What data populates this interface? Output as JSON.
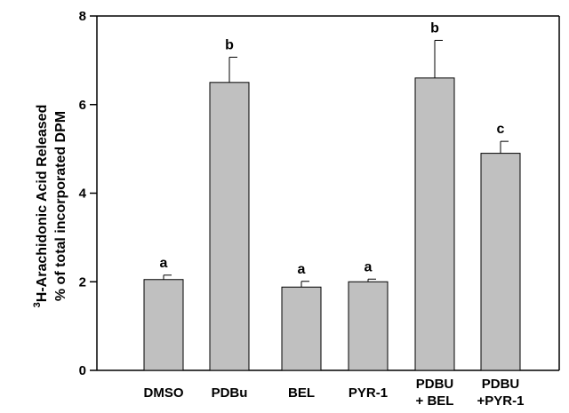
{
  "chart_data": {
    "type": "bar",
    "categories": [
      [
        "DMSO"
      ],
      [
        "PDBu"
      ],
      [
        "BEL"
      ],
      [
        "PYR-1"
      ],
      [
        "PDBU",
        "+ BEL"
      ],
      [
        "PDBU",
        "+PYR-1"
      ]
    ],
    "values": [
      2.05,
      6.5,
      1.88,
      2.0,
      6.6,
      4.9
    ],
    "errors": [
      0.1,
      0.57,
      0.13,
      0.06,
      0.85,
      0.27
    ],
    "significance": [
      "a",
      "b",
      "a",
      "a",
      "b",
      "c"
    ],
    "ylabel_superscript": "3",
    "ylabel_line1": "H-Arachidonic Acid Released",
    "ylabel_line2": "% of total incorporated DPM",
    "xlabel": "",
    "ylim": [
      0,
      8
    ],
    "yticks": [
      0,
      2,
      4,
      6,
      8
    ],
    "bar_color": "#c0c0c0",
    "grid": false,
    "legend": "none"
  }
}
